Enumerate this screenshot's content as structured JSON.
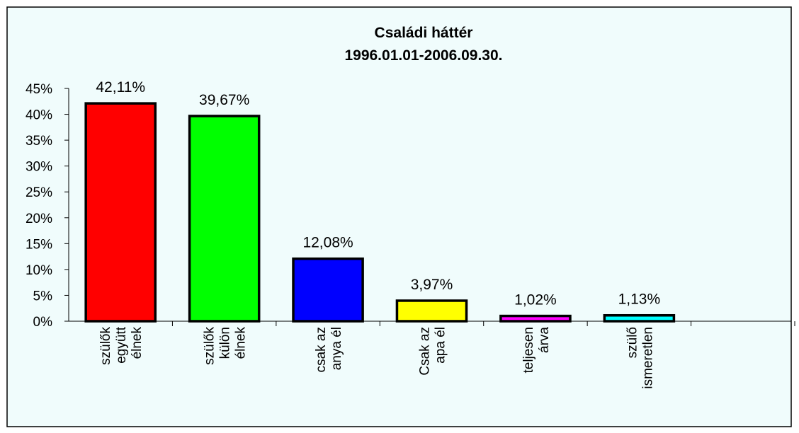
{
  "chart_data": {
    "type": "bar",
    "title": [
      "Családi háttér",
      "1996.01.01-2006.09.30."
    ],
    "categories": [
      "szülők\negyütt\nélnek",
      "szülők\nkülön\nélnek",
      "csak az\nanya él",
      "Csak az\napa él",
      "teljesen\nárva",
      "szülő\nismeretlen",
      null
    ],
    "values": [
      42.11,
      39.67,
      12.08,
      3.97,
      1.02,
      1.13,
      null
    ],
    "value_labels": [
      "42,11%",
      "39,67%",
      "12,08%",
      "3,97%",
      "1,02%",
      "1,13%",
      null
    ],
    "colors": [
      "#ff0000",
      "#00ff00",
      "#0000ff",
      "#ffff00",
      "#ff00ff",
      "#00ffff",
      null
    ],
    "ylim": [
      0,
      45
    ],
    "yticks": [
      {
        "value": 0,
        "label": "0%"
      },
      {
        "value": 5,
        "label": "5%"
      },
      {
        "value": 10,
        "label": "10%"
      },
      {
        "value": 15,
        "label": "15%"
      },
      {
        "value": 20,
        "label": "20%"
      },
      {
        "value": 25,
        "label": "25%"
      },
      {
        "value": 30,
        "label": "30%"
      },
      {
        "value": 35,
        "label": "35%"
      },
      {
        "value": 40,
        "label": "40%"
      },
      {
        "value": 45,
        "label": "45%"
      }
    ],
    "grid": false
  }
}
